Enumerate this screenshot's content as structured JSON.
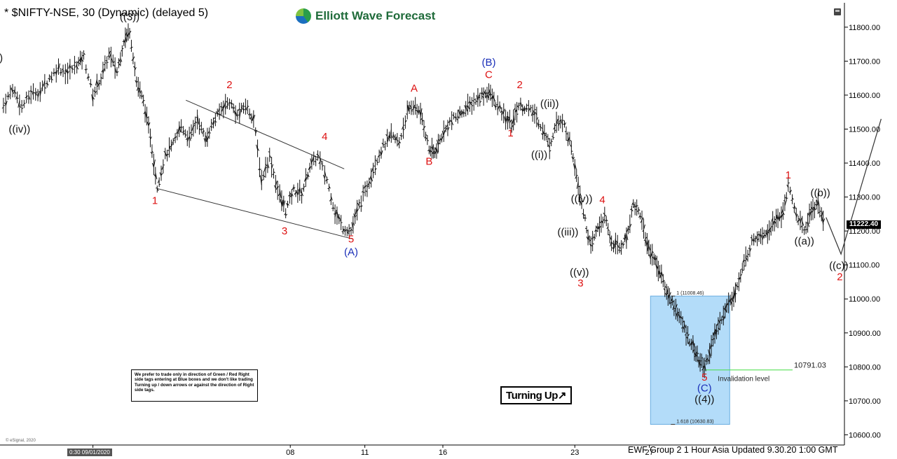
{
  "header": {
    "title": "* $NIFTY-NSE, 30 (Dynamic) (delayed 5)",
    "logo_text": "Elliott Wave Forecast"
  },
  "note": {
    "text": "We prefer to trade only in direction of Green / Red Right side tags entering at Blue boxes and we don't like trading Turning up / down arrows or against the direction of Right side tags."
  },
  "turning_badge": "Turning Up↗",
  "footer": {
    "info": "EWF Group 2   1 Hour Asia Updated 9.30.20 1:00 GMT",
    "esignal": "© eSignal, 2020",
    "date_tag": "0:30 09/01/2020"
  },
  "last_price": "11222.40",
  "colors": {
    "blue_box": "#b3dcf9",
    "red": "#dd1111",
    "blue": "#1a2fb8",
    "green": "#44dd44"
  },
  "chart_data": {
    "type": "line",
    "title": "* $NIFTY-NSE, 30 (Dynamic) (delayed 5)",
    "xlabel": "",
    "ylabel": "",
    "x_ticks": [
      {
        "label": "0:30 09/01/2020",
        "t": 0.8
      },
      {
        "label": "08",
        "t": 18
      },
      {
        "label": "11",
        "t": 24.5
      },
      {
        "label": "16",
        "t": 31.3
      },
      {
        "label": "23",
        "t": 42.8
      },
      {
        "label": "27",
        "t": 49.3
      }
    ],
    "xlim": [
      -7.3,
      66.3
    ],
    "ylim": [
      10570,
      11880
    ],
    "y_ticks": [
      11800,
      11700,
      11600,
      11500,
      11400,
      11300,
      11200,
      11100,
      11000,
      10900,
      10800,
      10700,
      10600
    ],
    "price_path": [
      [
        -7,
        11570
      ],
      [
        -6.2,
        11620
      ],
      [
        -5.4,
        11565
      ],
      [
        -4.6,
        11605
      ],
      [
        -3.8,
        11610
      ],
      [
        -3.0,
        11650
      ],
      [
        -2.2,
        11680
      ],
      [
        -1.4,
        11665
      ],
      [
        -0.6,
        11690
      ],
      [
        0,
        11712
      ],
      [
        0.8,
        11600
      ],
      [
        1.5,
        11650
      ],
      [
        2.2,
        11720
      ],
      [
        2.9,
        11670
      ],
      [
        3.5,
        11760
      ],
      [
        4.0,
        11790
      ],
      [
        4.6,
        11640
      ],
      [
        5.2,
        11580
      ],
      [
        5.8,
        11480
      ],
      [
        6.4,
        11330
      ],
      [
        7.1,
        11420
      ],
      [
        7.8,
        11455
      ],
      [
        8.5,
        11510
      ],
      [
        9.2,
        11470
      ],
      [
        9.9,
        11530
      ],
      [
        10.6,
        11470
      ],
      [
        11.3,
        11520
      ],
      [
        12.0,
        11560
      ],
      [
        12.7,
        11580
      ],
      [
        13.4,
        11540
      ],
      [
        14.1,
        11570
      ],
      [
        14.8,
        11530
      ],
      [
        15.5,
        11350
      ],
      [
        16.2,
        11420
      ],
      [
        16.9,
        11320
      ],
      [
        17.6,
        11260
      ],
      [
        18.3,
        11320
      ],
      [
        19.0,
        11310
      ],
      [
        19.7,
        11390
      ],
      [
        20.4,
        11420
      ],
      [
        21.2,
        11350
      ],
      [
        21.9,
        11255
      ],
      [
        22.6,
        11210
      ],
      [
        23.3,
        11200
      ],
      [
        24.0,
        11275
      ],
      [
        24.7,
        11330
      ],
      [
        25.4,
        11400
      ],
      [
        26.1,
        11450
      ],
      [
        26.8,
        11480
      ],
      [
        27.5,
        11460
      ],
      [
        28.2,
        11550
      ],
      [
        28.9,
        11570
      ],
      [
        29.5,
        11530
      ],
      [
        30.1,
        11440
      ],
      [
        30.6,
        11430
      ],
      [
        31.2,
        11480
      ],
      [
        31.9,
        11520
      ],
      [
        32.6,
        11540
      ],
      [
        33.3,
        11560
      ],
      [
        34.0,
        11580
      ],
      [
        34.7,
        11600
      ],
      [
        35.3,
        11610
      ],
      [
        35.9,
        11575
      ],
      [
        36.6,
        11540
      ],
      [
        37.3,
        11515
      ],
      [
        37.9,
        11570
      ],
      [
        38.6,
        11560
      ],
      [
        39.3,
        11545
      ],
      [
        40.0,
        11500
      ],
      [
        40.6,
        11450
      ],
      [
        41.2,
        11520
      ],
      [
        41.9,
        11510
      ],
      [
        42.5,
        11450
      ],
      [
        43.1,
        11340
      ],
      [
        43.7,
        11230
      ],
      [
        44.2,
        11150
      ],
      [
        44.8,
        11210
      ],
      [
        45.4,
        11240
      ],
      [
        46.0,
        11165
      ],
      [
        46.7,
        11150
      ],
      [
        47.3,
        11180
      ],
      [
        47.9,
        11280
      ],
      [
        48.5,
        11250
      ],
      [
        49.1,
        11160
      ],
      [
        49.7,
        11120
      ],
      [
        50.2,
        11080
      ],
      [
        50.8,
        11020
      ],
      [
        51.3,
        10990
      ],
      [
        51.9,
        10950
      ],
      [
        52.5,
        10900
      ],
      [
        53.1,
        10860
      ],
      [
        53.6,
        10820
      ],
      [
        54.1,
        10800
      ],
      [
        54.7,
        10860
      ],
      [
        55.3,
        10920
      ],
      [
        55.9,
        10970
      ],
      [
        56.5,
        11000
      ],
      [
        57.1,
        11050
      ],
      [
        57.7,
        11120
      ],
      [
        58.4,
        11180
      ],
      [
        59.0,
        11190
      ],
      [
        59.6,
        11200
      ],
      [
        60.2,
        11230
      ],
      [
        60.8,
        11240
      ],
      [
        61.4,
        11330
      ],
      [
        62.1,
        11250
      ],
      [
        62.8,
        11200
      ],
      [
        63.4,
        11260
      ],
      [
        64.0,
        11280
      ],
      [
        64.6,
        11210
      ]
    ],
    "trendlines": [
      {
        "from": [
          6.4,
          11325
        ],
        "to": [
          23.4,
          11177
        ]
      },
      {
        "from": [
          8.9,
          11585
        ],
        "to": [
          22.7,
          11383
        ]
      }
    ],
    "projection": [
      [
        64.7,
        11240
      ],
      [
        66.0,
        11132
      ],
      [
        69.5,
        11530
      ]
    ],
    "blue_box": {
      "x0": 49.4,
      "x1": 56.3,
      "y0": 10630.83,
      "y1": 11008.46
    },
    "levels": [
      {
        "label": "1 (11008.46)",
        "value": 11008.46
      },
      {
        "label": "1.618 (10630.83)",
        "value": 10630.83
      }
    ],
    "invalidation": {
      "value": 10791.03,
      "value_label": "10791.03",
      "label": "Invalidation level",
      "x_start": 54.1
    },
    "wave_labels": [
      {
        "text": "((3))",
        "t": 4.0,
        "y": 11820,
        "color": "black"
      },
      {
        "text": ")",
        "t": -7.2,
        "y": 11700,
        "color": "black"
      },
      {
        "text": "((iv))",
        "t": -5.6,
        "y": 11490,
        "color": "black"
      },
      {
        "text": "2",
        "t": 12.7,
        "y": 11620,
        "color": "red"
      },
      {
        "text": "1",
        "t": 6.2,
        "y": 11280,
        "color": "red"
      },
      {
        "text": "3",
        "t": 17.5,
        "y": 11190,
        "color": "red"
      },
      {
        "text": "4",
        "t": 21.0,
        "y": 11468,
        "color": "red"
      },
      {
        "text": "5",
        "t": 23.3,
        "y": 11166,
        "color": "red"
      },
      {
        "text": "(A)",
        "t": 23.3,
        "y": 11128,
        "color": "blue"
      },
      {
        "text": "A",
        "t": 28.8,
        "y": 11610,
        "color": "red"
      },
      {
        "text": "B",
        "t": 30.1,
        "y": 11395,
        "color": "red"
      },
      {
        "text": "C",
        "t": 35.3,
        "y": 11650,
        "color": "red"
      },
      {
        "text": "(B)",
        "t": 35.3,
        "y": 11686,
        "color": "blue"
      },
      {
        "text": "2",
        "t": 38.0,
        "y": 11620,
        "color": "red"
      },
      {
        "text": "1",
        "t": 37.2,
        "y": 11478,
        "color": "red"
      },
      {
        "text": "((ii))",
        "t": 40.6,
        "y": 11565,
        "color": "black"
      },
      {
        "text": "((i))",
        "t": 39.7,
        "y": 11415,
        "color": "black"
      },
      {
        "text": "((iv))",
        "t": 43.4,
        "y": 11285,
        "color": "black"
      },
      {
        "text": "((iii))",
        "t": 42.2,
        "y": 11187,
        "color": "black"
      },
      {
        "text": "4",
        "t": 45.2,
        "y": 11282,
        "color": "red"
      },
      {
        "text": "((v))",
        "t": 43.2,
        "y": 11068,
        "color": "black"
      },
      {
        "text": "3",
        "t": 43.3,
        "y": 11037,
        "color": "red"
      },
      {
        "text": "5",
        "t": 54.1,
        "y": 10760,
        "color": "red"
      },
      {
        "text": "(C)",
        "t": 54.1,
        "y": 10728,
        "color": "blue"
      },
      {
        "text": "((4))",
        "t": 54.1,
        "y": 10695,
        "color": "black"
      },
      {
        "text": "1",
        "t": 61.4,
        "y": 11355,
        "color": "red"
      },
      {
        "text": "((b))",
        "t": 64.2,
        "y": 11302,
        "color": "black"
      },
      {
        "text": "((a))",
        "t": 62.8,
        "y": 11160,
        "color": "black"
      },
      {
        "text": "((c))",
        "t": 65.8,
        "y": 11088,
        "color": "black"
      },
      {
        "text": "2",
        "t": 65.9,
        "y": 11055,
        "color": "red"
      }
    ]
  }
}
